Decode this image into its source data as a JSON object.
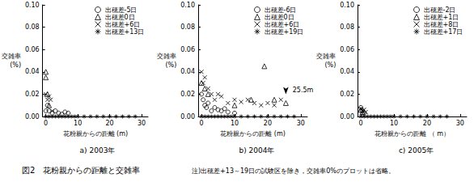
{
  "chart_data": [
    {
      "type": "scatter",
      "title": "a) 2003年",
      "xlabel": "花粉親からの距離 (m)",
      "ylabel": [
        "交雑率",
        "(%)"
      ],
      "xlim": [
        -1,
        32
      ],
      "xticks": [
        0,
        10,
        20,
        30
      ],
      "ylim": [
        0,
        0.1
      ],
      "yticks": [
        {
          "value": 0,
          "label": "0.00"
        },
        {
          "value": 0.02,
          "label": "0.02"
        },
        {
          "value": 0.04,
          "label": "0.04"
        },
        {
          "value": 0.06,
          "label": "0.06"
        },
        {
          "value": 0.08,
          "label": "0.08"
        },
        {
          "value": 0.1,
          "label": "0.10"
        }
      ],
      "legend": "upper right",
      "series": [
        {
          "name": "出穂差-5日",
          "color": "#000000",
          "marker": "circle",
          "x": [
            0,
            0.5,
            1,
            2,
            3,
            4,
            5,
            6,
            7
          ],
          "values": [
            0.005,
            0.01,
            0.005,
            0.003,
            0.005,
            0.003,
            0.002,
            0.004,
            0.003
          ]
        },
        {
          "name": "出穂差0日",
          "color": "#000000",
          "marker": "triangle",
          "x": [
            0,
            0,
            0.5,
            1
          ],
          "values": [
            0.04,
            0.035,
            0.02,
            0.01
          ]
        },
        {
          "name": "出穂差+6日",
          "color": "#000000",
          "marker": "x",
          "x": [
            0,
            0.5,
            1,
            1.5,
            2
          ],
          "values": [
            0.02,
            0.015,
            0.018,
            0.015,
            0.005
          ]
        },
        {
          "name": "出穂差+13日",
          "color": "#000000",
          "marker": "asterisk",
          "x": [
            0,
            1,
            2,
            3,
            4,
            5,
            6,
            7,
            8,
            9,
            10,
            12,
            14,
            16,
            18,
            20,
            22,
            24,
            26,
            28
          ],
          "values": [
            0,
            0,
            0,
            0,
            0,
            0,
            0,
            0,
            0,
            0,
            0,
            0,
            0,
            0,
            0,
            0,
            0,
            0,
            0,
            0
          ]
        }
      ]
    },
    {
      "type": "scatter",
      "title": "b) 2004年",
      "xlabel": "花粉親からの距離 (m)",
      "ylabel": [
        "交雑率",
        "(%)"
      ],
      "xlim": [
        -1,
        32
      ],
      "xticks": [
        0,
        10,
        20,
        30
      ],
      "ylim": [
        0,
        0.1
      ],
      "yticks": [
        {
          "value": 0,
          "label": "0.00"
        },
        {
          "value": 0.02,
          "label": "0.02"
        },
        {
          "value": 0.04,
          "label": "0.04"
        },
        {
          "value": 0.06,
          "label": "0.06"
        },
        {
          "value": 0.08,
          "label": "0.08"
        },
        {
          "value": 0.1,
          "label": "0.10"
        }
      ],
      "legend": "upper right",
      "annotations": [
        {
          "text": "25.5m",
          "x": 25.5,
          "y": 0.02
        }
      ],
      "series": [
        {
          "name": "出穂差-6日",
          "color": "#000000",
          "marker": "circle",
          "x": [
            0,
            0.5,
            1,
            1.5,
            2,
            3,
            4,
            5,
            6,
            7,
            8,
            10
          ],
          "values": [
            0.02,
            0.015,
            0.01,
            0.008,
            0.012,
            0.005,
            0.008,
            0.006,
            0.005,
            0.007,
            0.004,
            0.003
          ]
        },
        {
          "name": "出穂差0日",
          "color": "#000000",
          "marker": "triangle",
          "x": [
            0,
            1,
            2,
            10,
            15,
            19,
            22,
            25.5
          ],
          "values": [
            0.03,
            0.025,
            0.02,
            0.01,
            0.015,
            0.045,
            0.015,
            0.012
          ]
        },
        {
          "name": "出穂差+6日",
          "color": "#000000",
          "marker": "x",
          "x": [
            0,
            0.5,
            1,
            2,
            3,
            4,
            5,
            6,
            8,
            10,
            12,
            14,
            16,
            18,
            20,
            22,
            24
          ],
          "values": [
            0.04,
            0.03,
            0.035,
            0.025,
            0.02,
            0.015,
            0.02,
            0.018,
            0.012,
            0.015,
            0.013,
            0.015,
            0.012,
            0.01,
            0.012,
            0.01,
            0.015
          ]
        },
        {
          "name": "出穂差+19日",
          "color": "#000000",
          "marker": "asterisk",
          "x": [
            0,
            1,
            2,
            3,
            4,
            5,
            6,
            7,
            8,
            9,
            10,
            12,
            14,
            16,
            18,
            20,
            22,
            24,
            26,
            28
          ],
          "values": [
            0,
            0,
            0,
            0,
            0,
            0,
            0,
            0,
            0,
            0,
            0,
            0,
            0,
            0,
            0,
            0,
            0,
            0,
            0,
            0
          ]
        }
      ]
    },
    {
      "type": "scatter",
      "title": "c) 2005年",
      "xlabel": "花粉親からの距離 （ m）",
      "ylabel": [
        "交雑率",
        "(%)"
      ],
      "xlim": [
        -1,
        32
      ],
      "xticks": [
        0,
        10,
        20,
        30
      ],
      "ylim": [
        0,
        0.1
      ],
      "yticks": [
        {
          "value": 0,
          "label": "0.00"
        },
        {
          "value": 0.02,
          "label": "0.02"
        },
        {
          "value": 0.04,
          "label": "0.04"
        },
        {
          "value": 0.06,
          "label": "0.06"
        },
        {
          "value": 0.08,
          "label": "0.08"
        },
        {
          "value": 0.1,
          "label": "0.10"
        }
      ],
      "legend": "upper right",
      "series": [
        {
          "name": "出穂差-2日",
          "color": "#000000",
          "marker": "circle",
          "x": [
            0,
            0.5,
            1
          ],
          "values": [
            0.008,
            0.005,
            0.003
          ]
        },
        {
          "name": "出穂差+1日",
          "color": "#000000",
          "marker": "triangle",
          "x": [
            0,
            0.5
          ],
          "values": [
            0.006,
            0.004
          ]
        },
        {
          "name": "出穂差+8日",
          "color": "#000000",
          "marker": "x",
          "x": [
            0,
            0.5,
            1,
            1.5
          ],
          "values": [
            0.007,
            0.005,
            0.006,
            0.004
          ]
        },
        {
          "name": "出穂差+17日",
          "color": "#000000",
          "marker": "asterisk",
          "x": [
            0,
            1,
            2,
            3,
            4,
            5,
            6,
            7,
            8,
            9,
            10,
            12,
            14,
            16,
            18,
            20,
            22,
            24,
            26
          ],
          "values": [
            0,
            0,
            0,
            0,
            0,
            0,
            0,
            0,
            0,
            0,
            0,
            0,
            0,
            0,
            0,
            0,
            0,
            0,
            0
          ]
        }
      ]
    }
  ],
  "figure_caption": "図2　花粉親からの距離と交雑率",
  "note": "注)出穂差+13～19日の試験区を除き，交雑率0%のプロットは省略。"
}
